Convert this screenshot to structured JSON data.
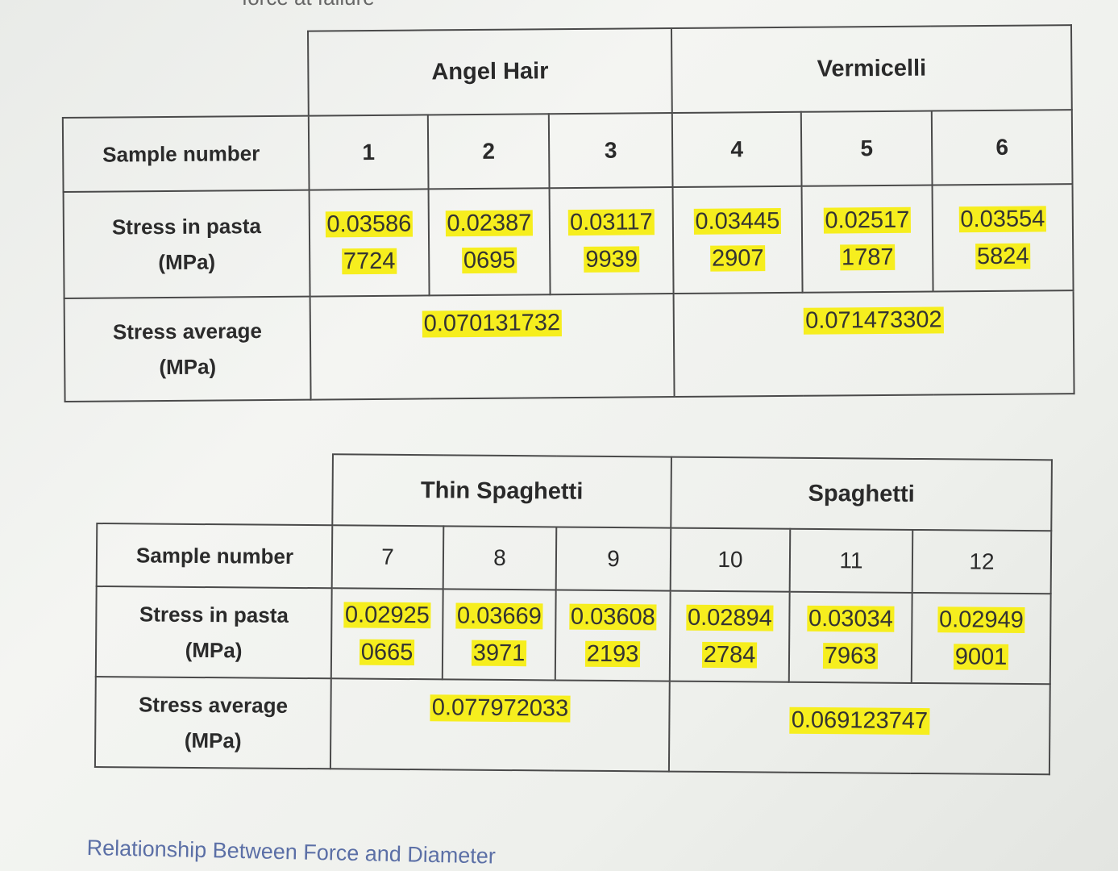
{
  "top_cut_text": "force at failure",
  "table1": {
    "groups": [
      {
        "name": "Angel Hair"
      },
      {
        "name": "Vermicelli"
      }
    ],
    "sample_label": "Sample number",
    "stress_label_line1": "Stress in pasta",
    "stress_label_line2": "(MPa)",
    "avg_label_line1": "Stress average",
    "avg_label_line2": "(MPa)",
    "samples": [
      {
        "number": "1",
        "stress_line1": "0.03586",
        "stress_line2": "7724"
      },
      {
        "number": "2",
        "stress_line1": "0.02387",
        "stress_line2": "0695"
      },
      {
        "number": "3",
        "stress_line1": "0.03117",
        "stress_line2": "9939"
      },
      {
        "number": "4",
        "stress_line1": "0.03445",
        "stress_line2": "2907"
      },
      {
        "number": "5",
        "stress_line1": "0.02517",
        "stress_line2": "1787"
      },
      {
        "number": "6",
        "stress_line1": "0.03554",
        "stress_line2": "5824"
      }
    ],
    "averages": [
      "0.070131732",
      "0.071473302"
    ]
  },
  "table2": {
    "groups": [
      {
        "name": "Thin Spaghetti"
      },
      {
        "name": "Spaghetti"
      }
    ],
    "sample_label": "Sample number",
    "stress_label_line1": "Stress in pasta",
    "stress_label_line2": "(MPa)",
    "avg_label_line1": "Stress average",
    "avg_label_line2": "(MPa)",
    "samples": [
      {
        "number": "7",
        "stress_line1": "0.02925",
        "stress_line2": "0665"
      },
      {
        "number": "8",
        "stress_line1": "0.03669",
        "stress_line2": "3971"
      },
      {
        "number": "9",
        "stress_line1": "0.03608",
        "stress_line2": "2193"
      },
      {
        "number": "10",
        "stress_line1": "0.02894",
        "stress_line2": "2784"
      },
      {
        "number": "11",
        "stress_line1": "0.03034",
        "stress_line2": "7963"
      },
      {
        "number": "12",
        "stress_line1": "0.02949",
        "stress_line2": "9001"
      }
    ],
    "averages": [
      "0.077972033",
      "0.069123747"
    ]
  },
  "footer_caption": "Relationship Between Force and Diameter",
  "colors": {
    "highlight": "#f6ee1e",
    "border": "#4a4a4a",
    "caption": "#5b6fa6"
  }
}
